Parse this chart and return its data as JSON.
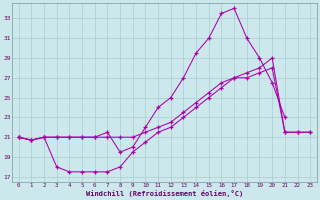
{
  "bg_color": "#cce8ec",
  "grid_color": "#aacccc",
  "line_color": "#aa00aa",
  "xlabel": "Windchill (Refroidissement éolien,°C)",
  "xlim": [
    -0.5,
    23.5
  ],
  "ylim": [
    16.5,
    34.5
  ],
  "xticks": [
    0,
    1,
    2,
    3,
    4,
    5,
    6,
    7,
    8,
    9,
    10,
    11,
    12,
    13,
    14,
    15,
    16,
    17,
    18,
    19,
    20,
    21,
    22,
    23
  ],
  "yticks": [
    17,
    19,
    21,
    23,
    25,
    27,
    29,
    31,
    33
  ],
  "line1_x": [
    0,
    1,
    2,
    3,
    4,
    5,
    6,
    7,
    8,
    9,
    10,
    11,
    12,
    13,
    14,
    15,
    16,
    17,
    18,
    19,
    20,
    21
  ],
  "line1_y": [
    21,
    20.7,
    21,
    21,
    21,
    21,
    21,
    21.5,
    19.5,
    20,
    22,
    24,
    25,
    27,
    29.5,
    31,
    33.5,
    34,
    31,
    29,
    26.5,
    23
  ],
  "line2_x": [
    0,
    1,
    2,
    3,
    4,
    5,
    6,
    7,
    8,
    9,
    10,
    11,
    12,
    13,
    14,
    15,
    16,
    17,
    18,
    19,
    20,
    21,
    22,
    23
  ],
  "line2_y": [
    21,
    20.7,
    21,
    21,
    21,
    21,
    21,
    21,
    21,
    21,
    21.5,
    22,
    22.5,
    23.5,
    24.5,
    25.5,
    26.5,
    27,
    27.5,
    28,
    29,
    21.5,
    21.5,
    21.5
  ],
  "line3_x": [
    0,
    1,
    2,
    3,
    4,
    5,
    6,
    7,
    8,
    9,
    10,
    11,
    12,
    13,
    14,
    15,
    16,
    17,
    18,
    19,
    20,
    21,
    22,
    23
  ],
  "line3_y": [
    21,
    20.7,
    21,
    18,
    17.5,
    17.5,
    17.5,
    17.5,
    18,
    19.5,
    20.5,
    21.5,
    22,
    23,
    24,
    25,
    26,
    27,
    27,
    27.5,
    28,
    21.5,
    21.5,
    21.5
  ]
}
